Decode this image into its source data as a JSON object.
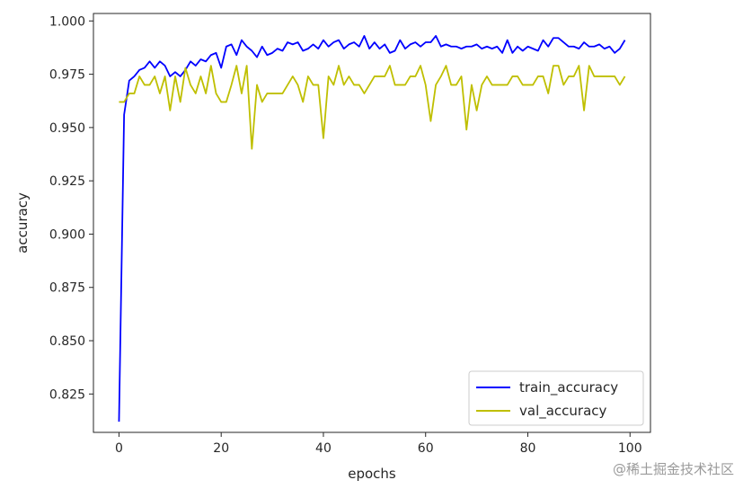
{
  "chart_data": {
    "type": "line",
    "title": "",
    "xlabel": "epochs",
    "ylabel": "accuracy",
    "xlim": [
      -5,
      104
    ],
    "ylim": [
      0.807,
      1.0035
    ],
    "xticks": [
      0,
      20,
      40,
      60,
      80,
      100
    ],
    "yticks": [
      0.825,
      0.85,
      0.875,
      0.9,
      0.925,
      0.95,
      0.975,
      1.0
    ],
    "xtick_labels": [
      "0",
      "20",
      "40",
      "60",
      "80",
      "100"
    ],
    "ytick_labels": [
      "0.825",
      "0.850",
      "0.875",
      "0.900",
      "0.925",
      "0.950",
      "0.975",
      "1.000"
    ],
    "grid": false,
    "legend_position": "bottom-right",
    "x": [
      0,
      1,
      2,
      3,
      4,
      5,
      6,
      7,
      8,
      9,
      10,
      11,
      12,
      13,
      14,
      15,
      16,
      17,
      18,
      19,
      20,
      21,
      22,
      23,
      24,
      25,
      26,
      27,
      28,
      29,
      30,
      31,
      32,
      33,
      34,
      35,
      36,
      37,
      38,
      39,
      40,
      41,
      42,
      43,
      44,
      45,
      46,
      47,
      48,
      49,
      50,
      51,
      52,
      53,
      54,
      55,
      56,
      57,
      58,
      59,
      60,
      61,
      62,
      63,
      64,
      65,
      66,
      67,
      68,
      69,
      70,
      71,
      72,
      73,
      74,
      75,
      76,
      77,
      78,
      79,
      80,
      81,
      82,
      83,
      84,
      85,
      86,
      87,
      88,
      89,
      90,
      91,
      92,
      93,
      94,
      95,
      96,
      97,
      98,
      99
    ],
    "series": [
      {
        "name": "train_accuracy",
        "color": "#0000ff",
        "values": [
          0.812,
          0.956,
          0.972,
          0.974,
          0.977,
          0.978,
          0.981,
          0.978,
          0.981,
          0.979,
          0.974,
          0.976,
          0.974,
          0.977,
          0.981,
          0.979,
          0.982,
          0.981,
          0.984,
          0.985,
          0.978,
          0.988,
          0.989,
          0.984,
          0.991,
          0.988,
          0.986,
          0.983,
          0.988,
          0.984,
          0.985,
          0.987,
          0.986,
          0.99,
          0.989,
          0.99,
          0.986,
          0.987,
          0.989,
          0.987,
          0.991,
          0.988,
          0.99,
          0.991,
          0.987,
          0.989,
          0.99,
          0.988,
          0.993,
          0.987,
          0.99,
          0.987,
          0.989,
          0.985,
          0.986,
          0.991,
          0.987,
          0.989,
          0.99,
          0.988,
          0.99,
          0.99,
          0.993,
          0.988,
          0.989,
          0.988,
          0.988,
          0.987,
          0.988,
          0.988,
          0.989,
          0.987,
          0.988,
          0.987,
          0.988,
          0.985,
          0.991,
          0.985,
          0.988,
          0.986,
          0.988,
          0.987,
          0.986,
          0.991,
          0.988,
          0.992,
          0.992,
          0.99,
          0.988,
          0.988,
          0.987,
          0.99,
          0.988,
          0.988,
          0.989,
          0.987,
          0.988,
          0.985,
          0.987,
          0.991
        ]
      },
      {
        "name": "val_accuracy",
        "color": "#bfbf00",
        "values": [
          0.962,
          0.962,
          0.966,
          0.966,
          0.974,
          0.97,
          0.97,
          0.974,
          0.966,
          0.974,
          0.958,
          0.974,
          0.962,
          0.978,
          0.97,
          0.966,
          0.974,
          0.966,
          0.979,
          0.966,
          0.962,
          0.962,
          0.97,
          0.979,
          0.966,
          0.979,
          0.94,
          0.97,
          0.962,
          0.966,
          0.966,
          0.966,
          0.966,
          0.97,
          0.974,
          0.97,
          0.962,
          0.974,
          0.97,
          0.97,
          0.945,
          0.974,
          0.97,
          0.979,
          0.97,
          0.974,
          0.97,
          0.97,
          0.966,
          0.97,
          0.974,
          0.974,
          0.974,
          0.979,
          0.97,
          0.97,
          0.97,
          0.974,
          0.974,
          0.979,
          0.97,
          0.953,
          0.97,
          0.974,
          0.979,
          0.97,
          0.97,
          0.974,
          0.949,
          0.97,
          0.958,
          0.97,
          0.974,
          0.97,
          0.97,
          0.97,
          0.97,
          0.974,
          0.974,
          0.97,
          0.97,
          0.97,
          0.974,
          0.974,
          0.966,
          0.979,
          0.979,
          0.97,
          0.974,
          0.974,
          0.979,
          0.958,
          0.979,
          0.974,
          0.974,
          0.974,
          0.974,
          0.974,
          0.97,
          0.974
        ]
      }
    ]
  },
  "watermark": "@稀土掘金技术社区"
}
